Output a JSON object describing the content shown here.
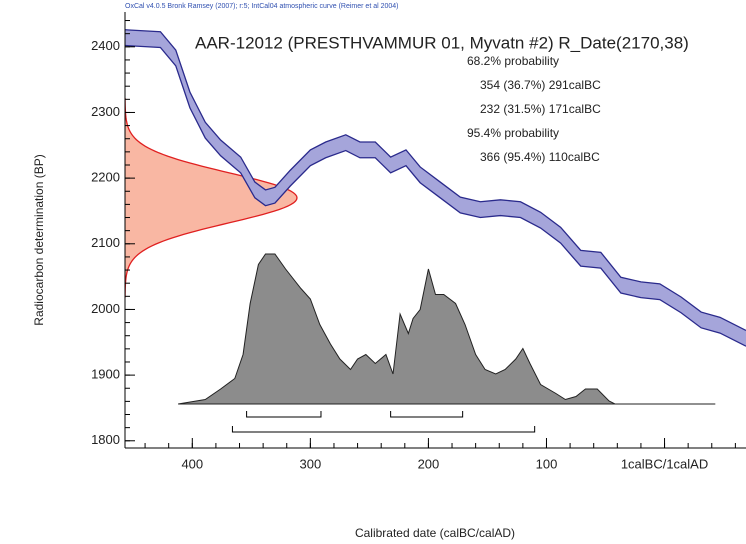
{
  "chart_data": {
    "type": "calibration",
    "title": "OxCal v4.0.5 Bronk Ramsey (2007); r:5; IntCal04 atmospheric curve (Reimer et al 2004)",
    "annotation": "AAR-12012 (PRESTHVAMMUR 01, Myvatn #2) R_Date(2170,38)",
    "xlabel": "Calibrated date (calBC/calAD)",
    "ylabel": "Radiocarbon determination (BP)",
    "xlim": [
      457,
      -69
    ],
    "ylim": [
      1789,
      2453
    ],
    "xticks": [
      400,
      300,
      200,
      100,
      {
        "value": 0,
        "label": "1calBC/1calAD"
      }
    ],
    "yticks": [
      1800,
      1900,
      2000,
      2100,
      2200,
      2300,
      2400
    ],
    "xminor_step": 20,
    "yminor_step": 20,
    "r_date": {
      "mean": 2170,
      "sd": 38,
      "color": "#e02020"
    },
    "curve": {
      "color": "#2a2a8c",
      "x": [
        457,
        427,
        414,
        402,
        389,
        376,
        359,
        347,
        338,
        330,
        317,
        300,
        287,
        270,
        258,
        245,
        232,
        219,
        207,
        190,
        173,
        156,
        139,
        122,
        105,
        88,
        71,
        54,
        37,
        20,
        4,
        -14,
        -31,
        -47,
        -69
      ],
      "upper": [
        2426,
        2423,
        2395,
        2331,
        2285,
        2258,
        2232,
        2194,
        2182,
        2186,
        2212,
        2243,
        2255,
        2266,
        2255,
        2255,
        2232,
        2243,
        2217,
        2194,
        2171,
        2164,
        2167,
        2164,
        2148,
        2125,
        2090,
        2087,
        2049,
        2042,
        2039,
        2019,
        1996,
        1988,
        1968
      ],
      "lower": [
        2402,
        2399,
        2371,
        2307,
        2261,
        2234,
        2208,
        2170,
        2158,
        2162,
        2188,
        2219,
        2231,
        2242,
        2231,
        2231,
        2208,
        2219,
        2193,
        2170,
        2147,
        2140,
        2143,
        2140,
        2124,
        2101,
        2066,
        2063,
        2025,
        2018,
        2015,
        1995,
        1972,
        1964,
        1944
      ]
    },
    "posterior": {
      "color": "#8c8c8c",
      "x": [
        412,
        389,
        376,
        364,
        357,
        351,
        344,
        338,
        330,
        321,
        308,
        300,
        292,
        283,
        275,
        266,
        260,
        253,
        245,
        236,
        230,
        224,
        217,
        213,
        207,
        200,
        194,
        187,
        177,
        169,
        160,
        152,
        143,
        135,
        126,
        120,
        114,
        105,
        92,
        84,
        75,
        67,
        57,
        47,
        42,
        -43
      ],
      "values": [
        0,
        0.03,
        0.1,
        0.17,
        0.33,
        0.67,
        0.93,
        1,
        1,
        0.9,
        0.77,
        0.7,
        0.53,
        0.4,
        0.3,
        0.23,
        0.3,
        0.33,
        0.27,
        0.33,
        0.2,
        0.6,
        0.47,
        0.57,
        0.63,
        0.9,
        0.73,
        0.73,
        0.67,
        0.53,
        0.33,
        0.23,
        0.2,
        0.23,
        0.3,
        0.37,
        0.27,
        0.13,
        0.07,
        0.03,
        0.05,
        0.1,
        0.1,
        0.02,
        0,
        0
      ]
    },
    "ranges": [
      {
        "name": "68.2% probability",
        "intervals": [
          {
            "from": 354,
            "to": 291,
            "label": "354 (36.7%) 291calBC"
          },
          {
            "from": 232,
            "to": 171,
            "label": "232 (31.5%) 171calBC"
          }
        ]
      },
      {
        "name": "95.4% probability",
        "intervals": [
          {
            "from": 366,
            "to": 110,
            "label": "366 (95.4%) 110calBC"
          }
        ]
      }
    ]
  }
}
